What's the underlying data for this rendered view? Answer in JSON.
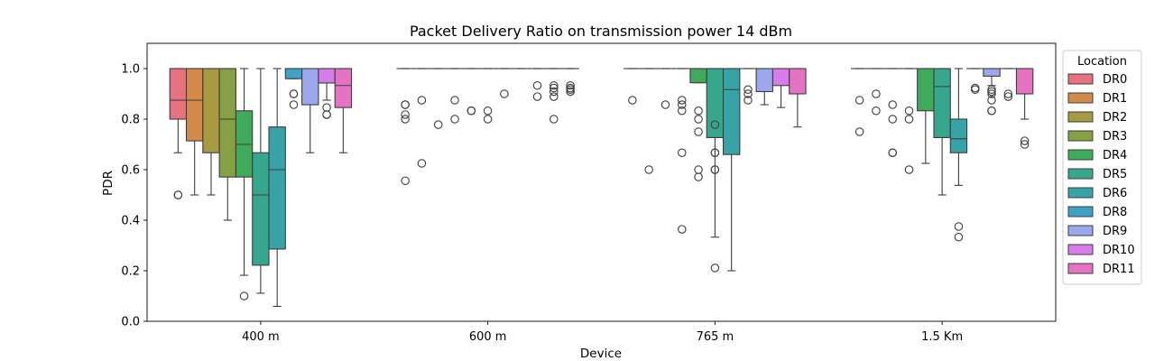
{
  "chart_data": {
    "type": "box",
    "title": "Packet Delivery Ratio on transmission power 14 dBm",
    "xlabel": "Device",
    "ylabel": "PDR",
    "ylim": [
      0.0,
      1.1
    ],
    "yticks": [
      "0.0",
      "0.2",
      "0.4",
      "0.6",
      "0.8",
      "1.0"
    ],
    "categories": [
      "400 m",
      "600 m",
      "765 m",
      "1.5 Km"
    ],
    "legend": {
      "title": "Location",
      "placement": "right",
      "entries": [
        {
          "name": "DR0",
          "color": "#e8717f"
        },
        {
          "name": "DR1",
          "color": "#d48a4b"
        },
        {
          "name": "DR2",
          "color": "#a89a40"
        },
        {
          "name": "DR3",
          "color": "#86a045"
        },
        {
          "name": "DR4",
          "color": "#3faa5b"
        },
        {
          "name": "DR5",
          "color": "#36a68c"
        },
        {
          "name": "DR6",
          "color": "#38a3a7"
        },
        {
          "name": "DR8",
          "color": "#3ea2c6"
        },
        {
          "name": "DR9",
          "color": "#9ca8ec"
        },
        {
          "name": "DR10",
          "color": "#d67ceb"
        },
        {
          "name": "DR11",
          "color": "#e474c2"
        }
      ]
    },
    "groups": [
      {
        "category": "400 m",
        "boxes": [
          {
            "series": "DR0",
            "q1": 0.8,
            "median": 0.875,
            "q3": 1.0,
            "whisker_low": 0.667,
            "whisker_high": 1.0,
            "outliers": [
              0.5,
              0.5
            ]
          },
          {
            "series": "DR1",
            "q1": 0.714,
            "median": 0.875,
            "q3": 1.0,
            "whisker_low": 0.5,
            "whisker_high": 1.0,
            "outliers": []
          },
          {
            "series": "DR2",
            "q1": 0.667,
            "median": 1.0,
            "q3": 1.0,
            "whisker_low": 0.5,
            "whisker_high": 1.0,
            "outliers": []
          },
          {
            "series": "DR3",
            "q1": 0.571,
            "median": 0.8,
            "q3": 1.0,
            "whisker_low": 0.4,
            "whisker_high": 1.0,
            "outliers": []
          },
          {
            "series": "DR4",
            "q1": 0.571,
            "median": 0.7,
            "q3": 0.833,
            "whisker_low": 0.182,
            "whisker_high": 1.0,
            "outliers": [
              0.1
            ]
          },
          {
            "series": "DR5",
            "q1": 0.222,
            "median": 0.5,
            "q3": 0.667,
            "whisker_low": 0.111,
            "whisker_high": 1.0,
            "outliers": []
          },
          {
            "series": "DR6",
            "q1": 0.286,
            "median": 0.6,
            "q3": 0.769,
            "whisker_low": 0.059,
            "whisker_high": 1.0,
            "outliers": []
          },
          {
            "series": "DR8",
            "q1": 0.96,
            "median": 1.0,
            "q3": 1.0,
            "whisker_low": 0.96,
            "whisker_high": 1.0,
            "outliers": [
              0.9,
              0.9,
              0.857
            ]
          },
          {
            "series": "DR9",
            "q1": 0.857,
            "median": 1.0,
            "q3": 1.0,
            "whisker_low": 0.667,
            "whisker_high": 1.0,
            "outliers": []
          },
          {
            "series": "DR10",
            "q1": 0.943,
            "median": 1.0,
            "q3": 1.0,
            "whisker_low": 0.875,
            "whisker_high": 1.0,
            "outliers": [
              0.846,
              0.818,
              0.818
            ]
          },
          {
            "series": "DR11",
            "q1": 0.846,
            "median": 0.933,
            "q3": 1.0,
            "whisker_low": 0.667,
            "whisker_high": 1.0,
            "outliers": []
          }
        ]
      },
      {
        "category": "600 m",
        "boxes": [
          {
            "series": "DR0",
            "q1": 1.0,
            "median": 1.0,
            "q3": 1.0,
            "whisker_low": 1.0,
            "whisker_high": 1.0,
            "outliers": [
              0.857,
              0.857,
              0.818,
              0.8,
              0.556
            ]
          },
          {
            "series": "DR1",
            "q1": 1.0,
            "median": 1.0,
            "q3": 1.0,
            "whisker_low": 1.0,
            "whisker_high": 1.0,
            "outliers": [
              0.875,
              0.625
            ]
          },
          {
            "series": "DR2",
            "q1": 1.0,
            "median": 1.0,
            "q3": 1.0,
            "whisker_low": 1.0,
            "whisker_high": 1.0,
            "outliers": [
              0.778
            ]
          },
          {
            "series": "DR3",
            "q1": 1.0,
            "median": 1.0,
            "q3": 1.0,
            "whisker_low": 1.0,
            "whisker_high": 1.0,
            "outliers": [
              0.875,
              0.8
            ]
          },
          {
            "series": "DR4",
            "q1": 1.0,
            "median": 1.0,
            "q3": 1.0,
            "whisker_low": 1.0,
            "whisker_high": 1.0,
            "outliers": [
              0.833,
              0.833
            ]
          },
          {
            "series": "DR5",
            "q1": 1.0,
            "median": 1.0,
            "q3": 1.0,
            "whisker_low": 1.0,
            "whisker_high": 1.0,
            "outliers": [
              0.833,
              0.8
            ]
          },
          {
            "series": "DR6",
            "q1": 1.0,
            "median": 1.0,
            "q3": 1.0,
            "whisker_low": 1.0,
            "whisker_high": 1.0,
            "outliers": [
              0.9
            ]
          },
          {
            "series": "DR8",
            "q1": 1.0,
            "median": 1.0,
            "q3": 1.0,
            "whisker_low": 1.0,
            "whisker_high": 1.0,
            "outliers": []
          },
          {
            "series": "DR9",
            "q1": 1.0,
            "median": 1.0,
            "q3": 1.0,
            "whisker_low": 1.0,
            "whisker_high": 1.0,
            "outliers": [
              0.933,
              0.889
            ]
          },
          {
            "series": "DR10",
            "q1": 1.0,
            "median": 1.0,
            "q3": 1.0,
            "whisker_low": 1.0,
            "whisker_high": 1.0,
            "outliers": [
              0.933,
              0.923,
              0.909,
              0.889,
              0.8
            ]
          },
          {
            "series": "DR11",
            "q1": 1.0,
            "median": 1.0,
            "q3": 1.0,
            "whisker_low": 1.0,
            "whisker_high": 1.0,
            "outliers": [
              0.933,
              0.923,
              0.917,
              0.909
            ]
          }
        ]
      },
      {
        "category": "765 m",
        "boxes": [
          {
            "series": "DR0",
            "q1": 1.0,
            "median": 1.0,
            "q3": 1.0,
            "whisker_low": 1.0,
            "whisker_high": 1.0,
            "outliers": [
              0.875
            ]
          },
          {
            "series": "DR1",
            "q1": 1.0,
            "median": 1.0,
            "q3": 1.0,
            "whisker_low": 1.0,
            "whisker_high": 1.0,
            "outliers": [
              0.6
            ]
          },
          {
            "series": "DR2",
            "q1": 1.0,
            "median": 1.0,
            "q3": 1.0,
            "whisker_low": 1.0,
            "whisker_high": 1.0,
            "outliers": [
              0.857
            ]
          },
          {
            "series": "DR3",
            "q1": 1.0,
            "median": 1.0,
            "q3": 1.0,
            "whisker_low": 1.0,
            "whisker_high": 1.0,
            "outliers": [
              0.875,
              0.857,
              0.833,
              0.667,
              0.364
            ]
          },
          {
            "series": "DR4",
            "q1": 0.944,
            "median": 1.0,
            "q3": 1.0,
            "whisker_low": 0.944,
            "whisker_high": 1.0,
            "outliers": [
              0.833,
              0.8,
              0.75,
              0.6,
              0.571
            ]
          },
          {
            "series": "DR5",
            "q1": 0.727,
            "median": 1.0,
            "q3": 1.0,
            "whisker_low": 0.333,
            "whisker_high": 1.0,
            "outliers": [
              0.778,
              0.667,
              0.667,
              0.6,
              0.6,
              0.211
            ]
          },
          {
            "series": "DR6",
            "q1": 0.66,
            "median": 0.917,
            "q3": 1.0,
            "whisker_low": 0.2,
            "whisker_high": 1.0,
            "outliers": []
          },
          {
            "series": "DR8",
            "q1": 1.0,
            "median": 1.0,
            "q3": 1.0,
            "whisker_low": 1.0,
            "whisker_high": 1.0,
            "outliers": [
              0.917,
              0.9,
              0.875
            ]
          },
          {
            "series": "DR9",
            "q1": 0.909,
            "median": 1.0,
            "q3": 1.0,
            "whisker_low": 0.857,
            "whisker_high": 1.0,
            "outliers": []
          },
          {
            "series": "DR10",
            "q1": 0.933,
            "median": 1.0,
            "q3": 1.0,
            "whisker_low": 0.846,
            "whisker_high": 1.0,
            "outliers": []
          },
          {
            "series": "DR11",
            "q1": 0.9,
            "median": 1.0,
            "q3": 1.0,
            "whisker_low": 0.769,
            "whisker_high": 1.0,
            "outliers": []
          }
        ]
      },
      {
        "category": "1.5 Km",
        "boxes": [
          {
            "series": "DR0",
            "q1": 1.0,
            "median": 1.0,
            "q3": 1.0,
            "whisker_low": 1.0,
            "whisker_high": 1.0,
            "outliers": [
              0.875,
              0.75
            ]
          },
          {
            "series": "DR1",
            "q1": 1.0,
            "median": 1.0,
            "q3": 1.0,
            "whisker_low": 1.0,
            "whisker_high": 1.0,
            "outliers": [
              0.9,
              0.833
            ]
          },
          {
            "series": "DR2",
            "q1": 1.0,
            "median": 1.0,
            "q3": 1.0,
            "whisker_low": 1.0,
            "whisker_high": 1.0,
            "outliers": [
              0.857,
              0.8,
              0.667,
              0.667
            ]
          },
          {
            "series": "DR3",
            "q1": 1.0,
            "median": 1.0,
            "q3": 1.0,
            "whisker_low": 1.0,
            "whisker_high": 1.0,
            "outliers": [
              0.833,
              0.8,
              0.6
            ]
          },
          {
            "series": "DR4",
            "q1": 0.833,
            "median": 1.0,
            "q3": 1.0,
            "whisker_low": 0.625,
            "whisker_high": 1.0,
            "outliers": []
          },
          {
            "series": "DR5",
            "q1": 0.727,
            "median": 0.929,
            "q3": 1.0,
            "whisker_low": 0.5,
            "whisker_high": 1.0,
            "outliers": []
          },
          {
            "series": "DR6",
            "q1": 0.667,
            "median": 0.722,
            "q3": 0.8,
            "whisker_low": 0.538,
            "whisker_high": 1.0,
            "outliers": [
              0.375,
              0.333
            ]
          },
          {
            "series": "DR8",
            "q1": 1.0,
            "median": 1.0,
            "q3": 1.0,
            "whisker_low": 1.0,
            "whisker_high": 1.0,
            "outliers": [
              0.923,
              0.917
            ]
          },
          {
            "series": "DR9",
            "q1": 0.97,
            "median": 1.0,
            "q3": 1.0,
            "whisker_low": 0.933,
            "whisker_high": 1.0,
            "outliers": [
              0.917,
              0.909,
              0.9,
              0.875,
              0.833,
              0.833
            ]
          },
          {
            "series": "DR10",
            "q1": 1.0,
            "median": 1.0,
            "q3": 1.0,
            "whisker_low": 1.0,
            "whisker_high": 1.0,
            "outliers": [
              0.9,
              0.889
            ]
          },
          {
            "series": "DR11",
            "q1": 0.9,
            "median": 1.0,
            "q3": 1.0,
            "whisker_low": 0.8,
            "whisker_high": 1.0,
            "outliers": [
              0.714,
              0.7
            ]
          }
        ]
      }
    ]
  }
}
